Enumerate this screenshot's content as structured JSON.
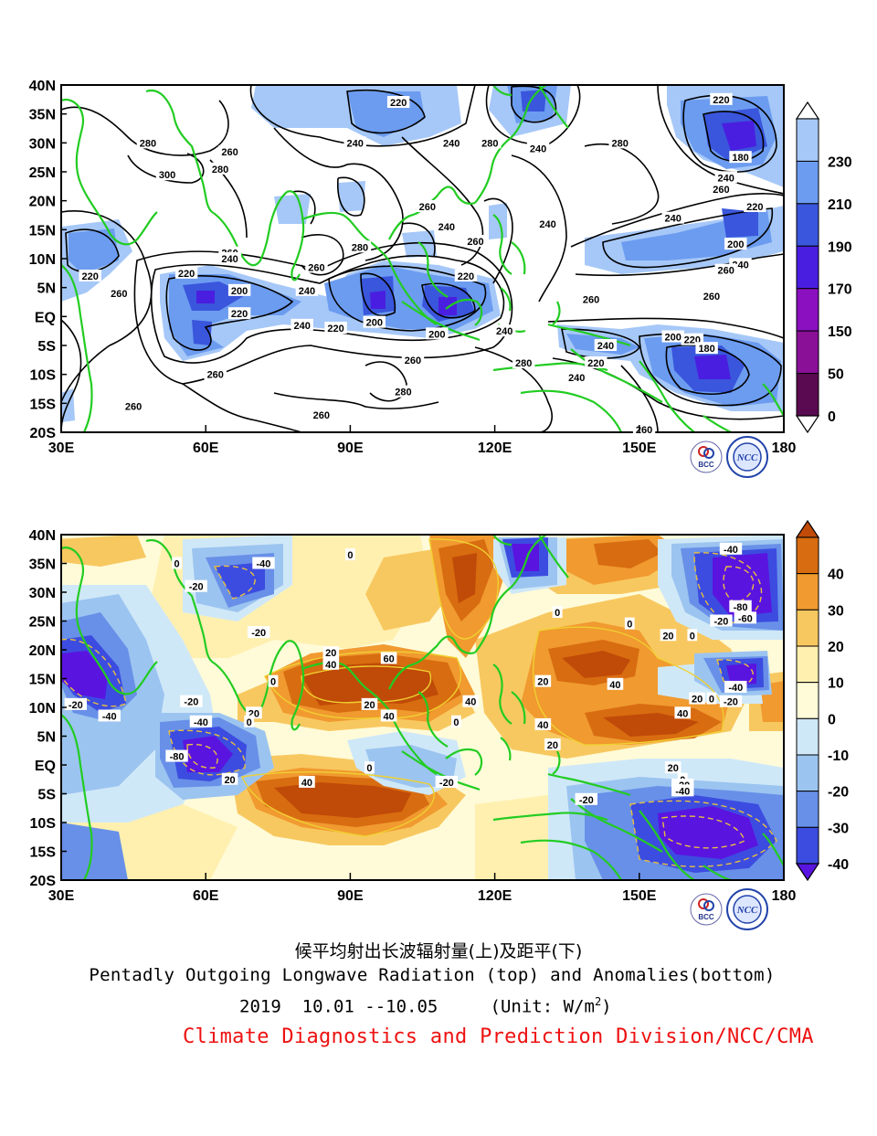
{
  "top_map": {
    "lon_labels": [
      "30E",
      "60E",
      "90E",
      "120E",
      "150E",
      "180"
    ],
    "lat_labels": [
      "40N",
      "35N",
      "30N",
      "25N",
      "20N",
      "15N",
      "10N",
      "5N",
      "EQ",
      "5S",
      "10S",
      "15S",
      "20S"
    ],
    "colorbar_labels": [
      "230",
      "210",
      "190",
      "170",
      "150",
      "50",
      "0"
    ],
    "colorbar_colors": [
      "#ffffff",
      "#a6c8f8",
      "#6c9cf0",
      "#3a56dc",
      "#4a1ee0",
      "#8a10c0",
      "#8a1098",
      "#5a0a50",
      "#ffffff"
    ],
    "contour_labels": [
      {
        "t": "220",
        "lon": 100,
        "lat": 37
      },
      {
        "t": "280",
        "lon": 48,
        "lat": 30
      },
      {
        "t": "260",
        "lon": 65,
        "lat": 28.5
      },
      {
        "t": "240",
        "lon": 91,
        "lat": 30
      },
      {
        "t": "240",
        "lon": 111,
        "lat": 30
      },
      {
        "t": "280",
        "lon": 119,
        "lat": 30
      },
      {
        "t": "240",
        "lon": 129,
        "lat": 29
      },
      {
        "t": "280",
        "lon": 63,
        "lat": 25.5
      },
      {
        "t": "300",
        "lon": 52,
        "lat": 24.5
      },
      {
        "t": "280",
        "lon": 146,
        "lat": 30
      },
      {
        "t": "220",
        "lon": 167,
        "lat": 37.5
      },
      {
        "t": "180",
        "lon": 171,
        "lat": 27.5
      },
      {
        "t": "240",
        "lon": 168,
        "lat": 24
      },
      {
        "t": "260",
        "lon": 167,
        "lat": 22
      },
      {
        "t": "260",
        "lon": 106,
        "lat": 19
      },
      {
        "t": "240",
        "lon": 110,
        "lat": 15.5
      },
      {
        "t": "240",
        "lon": 131,
        "lat": 16
      },
      {
        "t": "240",
        "lon": 157,
        "lat": 17
      },
      {
        "t": "220",
        "lon": 174,
        "lat": 19
      },
      {
        "t": "260",
        "lon": 65,
        "lat": 11
      },
      {
        "t": "240",
        "lon": 65,
        "lat": 10
      },
      {
        "t": "280",
        "lon": 92,
        "lat": 12
      },
      {
        "t": "260",
        "lon": 116,
        "lat": 13
      },
      {
        "t": "200",
        "lon": 170,
        "lat": 12.5
      },
      {
        "t": "240",
        "lon": 171,
        "lat": 9
      },
      {
        "t": "260",
        "lon": 168,
        "lat": 8
      },
      {
        "t": "260",
        "lon": 83,
        "lat": 8.5
      },
      {
        "t": "220",
        "lon": 36,
        "lat": 7
      },
      {
        "t": "220",
        "lon": 56,
        "lat": 7.5
      },
      {
        "t": "220",
        "lon": 114,
        "lat": 7
      },
      {
        "t": "260",
        "lon": 42,
        "lat": 4
      },
      {
        "t": "200",
        "lon": 67,
        "lat": 4.5
      },
      {
        "t": "240",
        "lon": 81,
        "lat": 4.5
      },
      {
        "t": "260",
        "lon": 140,
        "lat": 3
      },
      {
        "t": "260",
        "lon": 165,
        "lat": 3.5
      },
      {
        "t": "220",
        "lon": 67,
        "lat": 0.5
      },
      {
        "t": "240",
        "lon": 80,
        "lat": -1.5
      },
      {
        "t": "220",
        "lon": 87,
        "lat": -2
      },
      {
        "t": "200",
        "lon": 95,
        "lat": -1
      },
      {
        "t": "240",
        "lon": 122,
        "lat": -2.5
      },
      {
        "t": "200",
        "lon": 108,
        "lat": -3
      },
      {
        "t": "200",
        "lon": 157,
        "lat": -3.5
      },
      {
        "t": "220",
        "lon": 161,
        "lat": -4
      },
      {
        "t": "180",
        "lon": 164,
        "lat": -5.5
      },
      {
        "t": "240",
        "lon": 143,
        "lat": -5
      },
      {
        "t": "220",
        "lon": 141,
        "lat": -8
      },
      {
        "t": "260",
        "lon": 103,
        "lat": -7.5
      },
      {
        "t": "280",
        "lon": 126,
        "lat": -8
      },
      {
        "t": "260",
        "lon": 62,
        "lat": -10
      },
      {
        "t": "240",
        "lon": 137,
        "lat": -10.5
      },
      {
        "t": "280",
        "lon": 101,
        "lat": -13
      },
      {
        "t": "260",
        "lon": 45,
        "lat": -15.5
      },
      {
        "t": "260",
        "lon": 84,
        "lat": -17
      },
      {
        "t": "260",
        "lon": 151,
        "lat": -19.5
      }
    ]
  },
  "bottom_map": {
    "lon_labels": [
      "30E",
      "60E",
      "90E",
      "120E",
      "150E",
      "180"
    ],
    "lat_labels": [
      "40N",
      "35N",
      "30N",
      "25N",
      "20N",
      "15N",
      "10N",
      "5N",
      "EQ",
      "5S",
      "10S",
      "15S",
      "20S"
    ],
    "colorbar_labels": [
      "40",
      "30",
      "20",
      "10",
      "0",
      "-10",
      "-20",
      "-30",
      "-40"
    ],
    "colorbar_colors": [
      "#c04a08",
      "#d86c10",
      "#f09a30",
      "#f8c860",
      "#fff0b0",
      "#fffbd8",
      "#cfe8f8",
      "#9cc4f0",
      "#6890e8",
      "#3c4ce0",
      "#5a14e0"
    ],
    "contour_labels": [
      {
        "t": "0",
        "lon": 90,
        "lat": 36.5
      },
      {
        "t": "-40",
        "lon": 72,
        "lat": 35
      },
      {
        "t": "-40",
        "lon": 169,
        "lat": 37.5
      },
      {
        "t": "0",
        "lon": 54,
        "lat": 35
      },
      {
        "t": "-20",
        "lon": 58,
        "lat": 31
      },
      {
        "t": "-80",
        "lon": 171,
        "lat": 27.5
      },
      {
        "t": "-60",
        "lon": 172,
        "lat": 25.5
      },
      {
        "t": "-20",
        "lon": 167,
        "lat": 25
      },
      {
        "t": "0",
        "lon": 133,
        "lat": 26.5
      },
      {
        "t": "0",
        "lon": 148,
        "lat": 24.5
      },
      {
        "t": "20",
        "lon": 156,
        "lat": 22.5
      },
      {
        "t": "0",
        "lon": 161,
        "lat": 22.5
      },
      {
        "t": "-20",
        "lon": 71,
        "lat": 23
      },
      {
        "t": "20",
        "lon": 86,
        "lat": 19.5
      },
      {
        "t": "60",
        "lon": 98,
        "lat": 18.5
      },
      {
        "t": "40",
        "lon": 86,
        "lat": 17.5
      },
      {
        "t": "0",
        "lon": 74,
        "lat": 14.5
      },
      {
        "t": "20",
        "lon": 130,
        "lat": 14.5
      },
      {
        "t": "40",
        "lon": 145,
        "lat": 14
      },
      {
        "t": "-40",
        "lon": 170,
        "lat": 13.5
      },
      {
        "t": "20",
        "lon": 162,
        "lat": 11.5
      },
      {
        "t": "0",
        "lon": 165,
        "lat": 11.5
      },
      {
        "t": "-20",
        "lon": 169,
        "lat": 11
      },
      {
        "t": "-20",
        "lon": 33,
        "lat": 10.5
      },
      {
        "t": "-20",
        "lon": 57,
        "lat": 11
      },
      {
        "t": "20",
        "lon": 70,
        "lat": 9
      },
      {
        "t": "-40",
        "lon": 40,
        "lat": 8.5
      },
      {
        "t": "20",
        "lon": 94,
        "lat": 10.5
      },
      {
        "t": "40",
        "lon": 115,
        "lat": 11
      },
      {
        "t": "40",
        "lon": 98,
        "lat": 8.5
      },
      {
        "t": "0",
        "lon": 69,
        "lat": 7.5
      },
      {
        "t": "-40",
        "lon": 59,
        "lat": 7.5
      },
      {
        "t": "0",
        "lon": 112,
        "lat": 7.5
      },
      {
        "t": "40",
        "lon": 159,
        "lat": 9
      },
      {
        "t": "40",
        "lon": 130,
        "lat": 7
      },
      {
        "t": "20",
        "lon": 132,
        "lat": 3.5
      },
      {
        "t": "-80",
        "lon": 54,
        "lat": 1.5
      },
      {
        "t": "0",
        "lon": 94,
        "lat": -0.5
      },
      {
        "t": "20",
        "lon": 157,
        "lat": -0.5
      },
      {
        "t": "20",
        "lon": 65,
        "lat": -2.5
      },
      {
        "t": "40",
        "lon": 81,
        "lat": -3
      },
      {
        "t": "-20",
        "lon": 110,
        "lat": -3
      },
      {
        "t": "0",
        "lon": 159,
        "lat": -2.5
      },
      {
        "t": "-20",
        "lon": 159,
        "lat": -3.5
      },
      {
        "t": "-40",
        "lon": 159,
        "lat": -4.5
      },
      {
        "t": "-20",
        "lon": 139,
        "lat": -6
      }
    ]
  },
  "caption": {
    "chinese_title": "候平均射出长波辐射量(上)及距平(下)",
    "english_title": "Pentadly Outgoing Longwave Radiation (top) and Anomalies(bottom)",
    "date": "2019  10.01 --10.05",
    "unit_prefix": "(Unit: W/m",
    "unit_exp": "2",
    "unit_suffix": ")",
    "organization": "Climate Diagnostics and Prediction Division/NCC/CMA"
  },
  "logos": {
    "bcc_text": "BCC",
    "ncc_text": "NCC"
  },
  "colors": {
    "coastline": "#22cc22",
    "contour": "#000000",
    "caption_org": "#ee1111"
  }
}
